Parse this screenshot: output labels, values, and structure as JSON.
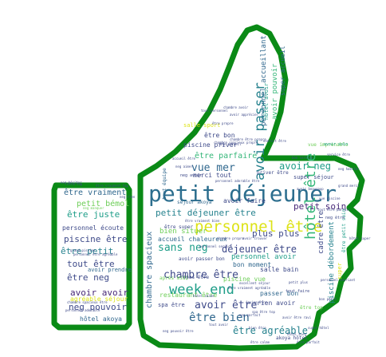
{
  "colors": {
    "outline": "#0a8a16",
    "background": "#ffffff",
    "palette": [
      "#2c6e8e",
      "#1f9e89",
      "#35b779",
      "#6ece58",
      "#b5de2b",
      "#dde318",
      "#3e4a89",
      "#482878",
      "#26828e",
      "#31688e"
    ]
  },
  "words": [
    {
      "text": "petit déjeuner",
      "color": "#2c6e8e"
    },
    {
      "text": "personnel être",
      "color": "#dde318"
    },
    {
      "text": "avoir passer",
      "color": "#26828e"
    },
    {
      "text": "week end",
      "color": "#1f9e89"
    },
    {
      "text": "hôtel être",
      "color": "#35b779"
    },
    {
      "text": "chambre être",
      "color": "#3e4a89"
    },
    {
      "text": "sans neg",
      "color": "#1f9e89"
    },
    {
      "text": "être bien",
      "color": "#31688e"
    },
    {
      "text": "avoir être",
      "color": "#3e4a89"
    },
    {
      "text": "petit déjeuner être",
      "color": "#26828e"
    },
    {
      "text": "vue mer",
      "color": "#31688e"
    },
    {
      "text": "être parfaire",
      "color": "#35b779"
    },
    {
      "text": "avoir neg",
      "color": "#1f9e89"
    },
    {
      "text": "déjeuner être",
      "color": "#3e4a89"
    },
    {
      "text": "plus plus",
      "color": "#3e4a89"
    },
    {
      "text": "petit soin",
      "color": "#482878"
    },
    {
      "text": "être agréable",
      "color": "#26828e"
    },
    {
      "text": "chambre spacieux",
      "color": "#31688e"
    },
    {
      "text": "personnel accueillant",
      "color": "#31688e"
    },
    {
      "text": "avoir pouvoir",
      "color": "#35b779"
    },
    {
      "text": "super accueil",
      "color": "#31688e"
    },
    {
      "text": "piscine débordement",
      "color": "#26828e"
    },
    {
      "text": "cadre être",
      "color": "#3e4a89"
    },
    {
      "text": "être vraiment",
      "color": "#31688e"
    },
    {
      "text": "petit bémol",
      "color": "#6ece58"
    },
    {
      "text": "être juste",
      "color": "#1f9e89"
    },
    {
      "text": "personnel écoute",
      "color": "#3e4a89"
    },
    {
      "text": "piscine être",
      "color": "#3e4a89"
    },
    {
      "text": "être petit",
      "color": "#26828e"
    },
    {
      "text": "tout être",
      "color": "#3e4a89"
    },
    {
      "text": "être neg",
      "color": "#3e4a89"
    },
    {
      "text": "avoir avoir",
      "color": "#482878"
    },
    {
      "text": "neg pouvoir",
      "color": "#3e4a89"
    },
    {
      "text": "hôtel akoya",
      "color": "#31688e"
    },
    {
      "text": "agréable séjour",
      "color": "#dde318"
    },
    {
      "text": "avoir prendre",
      "color": "#31688e"
    },
    {
      "text": "être bon",
      "color": "#3e4a89"
    },
    {
      "text": "piscine priver",
      "color": "#3e4a89"
    },
    {
      "text": "salle sport",
      "color": "#dde318"
    },
    {
      "text": "bien situer",
      "color": "#6ece58"
    },
    {
      "text": "accueil chaleureux",
      "color": "#31688e"
    },
    {
      "text": "personnel avoir",
      "color": "#1f9e89"
    },
    {
      "text": "bon moment",
      "color": "#31688e"
    },
    {
      "text": "salle bain",
      "color": "#3e4a89"
    },
    {
      "text": "piscine vue",
      "color": "#6ece58"
    },
    {
      "text": "restaurant être",
      "color": "#6ece58"
    },
    {
      "text": "passer bon",
      "color": "#31688e"
    },
    {
      "text": "rien avoir",
      "color": "#3e4a89"
    },
    {
      "text": "avoir faire",
      "color": "#3e4a89"
    },
    {
      "text": "merci tout",
      "color": "#3e4a89"
    },
    {
      "text": "super séjour",
      "color": "#3e4a89"
    },
    {
      "text": "tout équipe",
      "color": "#31688e"
    },
    {
      "text": "séjour akoya",
      "color": "#31688e"
    },
    {
      "text": "spa être",
      "color": "#3e4a89"
    },
    {
      "text": "repas être",
      "color": "#3e4a89"
    },
    {
      "text": "akoya hôtel",
      "color": "#3e4a89"
    },
    {
      "text": "vue imprenable",
      "color": "#6ece58"
    },
    {
      "text": "priver être",
      "color": "#3e4a89"
    },
    {
      "text": "hôtel avoir",
      "color": "#1f9e89"
    },
    {
      "text": "avoir passer bon",
      "color": "#3e4a89"
    },
    {
      "text": "être petit soin",
      "color": "#1f9e89"
    },
    {
      "text": "après midi",
      "color": "#6ece58"
    },
    {
      "text": "être super",
      "color": "#3e4a89"
    },
    {
      "text": "neg avoir",
      "color": "#3e4a89"
    },
    {
      "text": "neg habiter",
      "color": "#3e4a89"
    },
    {
      "text": "avoir soin",
      "color": "#1f9e89"
    },
    {
      "text": "neg être",
      "color": "#3e4a89"
    },
    {
      "text": "super",
      "color": "#dde318"
    },
    {
      "text": "être top",
      "color": "#6ece58"
    },
    {
      "text": "tout faire",
      "color": "#3e4a89"
    },
    {
      "text": "chambre spacieux être",
      "color": "#3e4a89"
    },
    {
      "text": "personnel adorable",
      "color": "#3e4a89"
    },
    {
      "text": "personnel être agréable",
      "color": "#3e4a89"
    },
    {
      "text": "avoir apprécier",
      "color": "#3e4a89"
    },
    {
      "text": "chambre avoir",
      "color": "#3e4a89"
    },
    {
      "text": "grand piscine",
      "color": "#3e4a89"
    },
    {
      "text": "être propre",
      "color": "#3e4a89"
    },
    {
      "text": "bon accueil",
      "color": "#3e4a89"
    },
    {
      "text": "endroit être",
      "color": "#3e4a89"
    },
    {
      "text": "service être",
      "color": "#3e4a89"
    },
    {
      "text": "neg hésiter",
      "color": "#3e4a89"
    },
    {
      "text": "neg manquer",
      "color": "#6ece58"
    },
    {
      "text": "neg rien",
      "color": "#3e4a89"
    },
    {
      "text": "avoir trouver",
      "color": "#3e4a89"
    },
    {
      "text": "excellent séjour",
      "color": "#3e4a89"
    },
    {
      "text": "petit plus",
      "color": "#3e4a89"
    },
    {
      "text": "avoir être ravi",
      "color": "#3e4a89"
    },
    {
      "text": "bien être",
      "color": "#3e4a89"
    },
    {
      "text": "accueil être",
      "color": "#3e4a89"
    },
    {
      "text": "tout personnel",
      "color": "#3e4a89"
    },
    {
      "text": "chambre être propre",
      "color": "#3e4a89"
    },
    {
      "text": "chambre spacieux propre",
      "color": "#3e4a89"
    },
    {
      "text": "être vraiment bien",
      "color": "#3e4a89"
    },
    {
      "text": "neg aimer",
      "color": "#3e4a89"
    },
    {
      "text": "être parfait",
      "color": "#3e4a89"
    },
    {
      "text": "bon service",
      "color": "#3e4a89"
    },
    {
      "text": "personnel service",
      "color": "#3e4a89"
    },
    {
      "text": "neg parfait",
      "color": "#3e4a89"
    },
    {
      "text": "vue piscine",
      "color": "#3e4a89"
    },
    {
      "text": "hôtel bien",
      "color": "#3e4a89"
    },
    {
      "text": "être calme",
      "color": "#3e4a89"
    },
    {
      "text": "neg pouvoir être",
      "color": "#3e4a89"
    },
    {
      "text": "grand merci",
      "color": "#3e4a89"
    },
    {
      "text": "tout avoir",
      "color": "#3e4a89"
    },
    {
      "text": "hôtel super",
      "color": "#3e4a89"
    },
    {
      "text": "être vraiment agréable",
      "color": "#3e4a89"
    },
    {
      "text": "spa être top",
      "color": "#3e4a89"
    },
    {
      "text": "équipe être",
      "color": "#3e4a89"
    },
    {
      "text": "personnel adorable être",
      "color": "#3e4a89"
    },
    {
      "text": "personnel souriant",
      "color": "#3e4a89"
    },
    {
      "text": "hôtel calme",
      "color": "#3e4a89"
    },
    {
      "text": "avoir beaucoup",
      "color": "#3e4a89"
    },
    {
      "text": "tout être parfait",
      "color": "#3e4a89"
    },
    {
      "text": "chambre propre",
      "color": "#3e4a89"
    },
    {
      "text": "être top",
      "color": "#3e4a89"
    },
    {
      "text": "être vraiment top",
      "color": "#3e4a89"
    },
    {
      "text": "super hôtel",
      "color": "#3e4a89"
    },
    {
      "text": "bon petit",
      "color": "#3e4a89"
    }
  ]
}
